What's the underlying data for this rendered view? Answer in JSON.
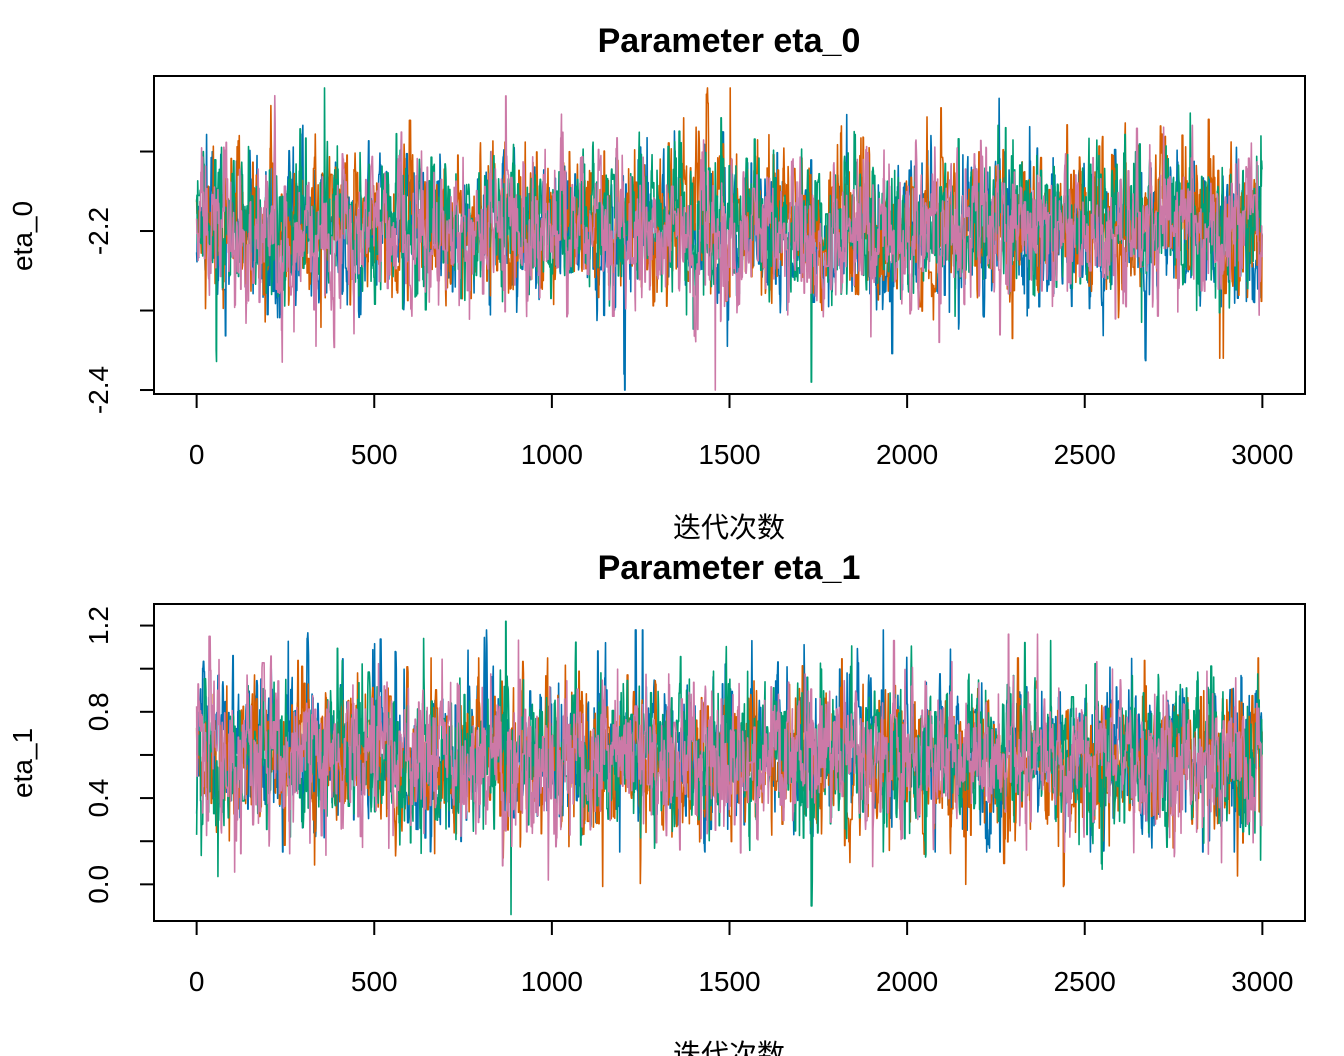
{
  "chart_data": [
    {
      "type": "line",
      "title": "Parameter eta_0",
      "xlabel": "迭代次数",
      "ylabel": "eta_0",
      "xlim": [
        -120,
        3120
      ],
      "ylim": [
        -2.405,
        -2.005
      ],
      "xticks": [
        0,
        500,
        1000,
        1500,
        2000,
        2500,
        3000
      ],
      "xtick_labels": [
        "0",
        "500",
        "1000",
        "1500",
        "2000",
        "2500",
        "3000"
      ],
      "yticks": [
        -2.4,
        -2.3,
        -2.2,
        -2.1
      ],
      "ytick_labels": [
        "-2.4",
        "",
        "-2.2",
        ""
      ],
      "grid": false,
      "legend": "none",
      "series": [
        {
          "color": "#0072B2",
          "center": -2.2,
          "sd": 0.045,
          "rho": 0.55,
          "min": -2.405,
          "max": -2.03,
          "dips": [
            [
              1205,
              -2.4
            ],
            [
              1203,
              -2.38
            ],
            [
              2670,
              -2.36
            ]
          ]
        },
        {
          "color": "#D55E00",
          "center": -2.19,
          "sd": 0.045,
          "rho": 0.55,
          "min": -2.37,
          "max": -2.02,
          "dips": [
            [
              1502,
              -2.02
            ],
            [
              2880,
              -2.36
            ],
            [
              2890,
              -2.36
            ]
          ]
        },
        {
          "color": "#009E73",
          "center": -2.19,
          "sd": 0.045,
          "rho": 0.55,
          "min": -2.39,
          "max": -2.02,
          "dips": [
            [
              360,
              -2.02
            ],
            [
              1730,
              -2.39
            ],
            [
              55,
              -2.35
            ]
          ]
        },
        {
          "color": "#CC79A7",
          "center": -2.2,
          "sd": 0.045,
          "rho": 0.55,
          "min": -2.4,
          "max": -2.02,
          "dips": [
            [
              1460,
              -2.4
            ],
            [
              870,
              -2.03
            ],
            [
              2090,
              -2.34
            ]
          ]
        }
      ]
    },
    {
      "type": "line",
      "title": "Parameter eta_1",
      "xlabel": "迭代次数",
      "ylabel": "eta_1",
      "xlim": [
        -120,
        3120
      ],
      "ylim": [
        -0.17,
        1.3
      ],
      "xticks": [
        0,
        500,
        1000,
        1500,
        2000,
        2500,
        3000
      ],
      "xtick_labels": [
        "0",
        "500",
        "1000",
        "1500",
        "2000",
        "2500",
        "3000"
      ],
      "yticks": [
        0.0,
        0.2,
        0.4,
        0.6,
        0.8,
        1.0,
        1.2
      ],
      "ytick_labels": [
        "0.0",
        "",
        "0.4",
        "",
        "0.8",
        "",
        "1.2"
      ],
      "grid": false,
      "legend": "none",
      "series": [
        {
          "color": "#0072B2",
          "center": 0.6,
          "sd": 0.17,
          "rho": 0.5,
          "min": 0.15,
          "max": 1.18,
          "dips": [
            [
              1235,
              1.18
            ],
            [
              1255,
              1.18
            ]
          ]
        },
        {
          "color": "#D55E00",
          "center": 0.58,
          "sd": 0.17,
          "rho": 0.5,
          "min": -0.01,
          "max": 1.05,
          "dips": [
            [
              2440,
              -0.01
            ],
            [
              2165,
              0.0
            ]
          ]
        },
        {
          "color": "#009E73",
          "center": 0.6,
          "sd": 0.17,
          "rho": 0.5,
          "min": -0.14,
          "max": 1.22,
          "dips": [
            [
              870,
              1.22
            ],
            [
              885,
              -0.14
            ],
            [
              1730,
              -0.1
            ]
          ]
        },
        {
          "color": "#CC79A7",
          "center": 0.6,
          "sd": 0.17,
          "rho": 0.5,
          "min": 0.02,
          "max": 1.16,
          "dips": [
            [
              35,
              1.15
            ],
            [
              2285,
              1.16
            ],
            [
              990,
              0.02
            ]
          ]
        }
      ]
    }
  ]
}
